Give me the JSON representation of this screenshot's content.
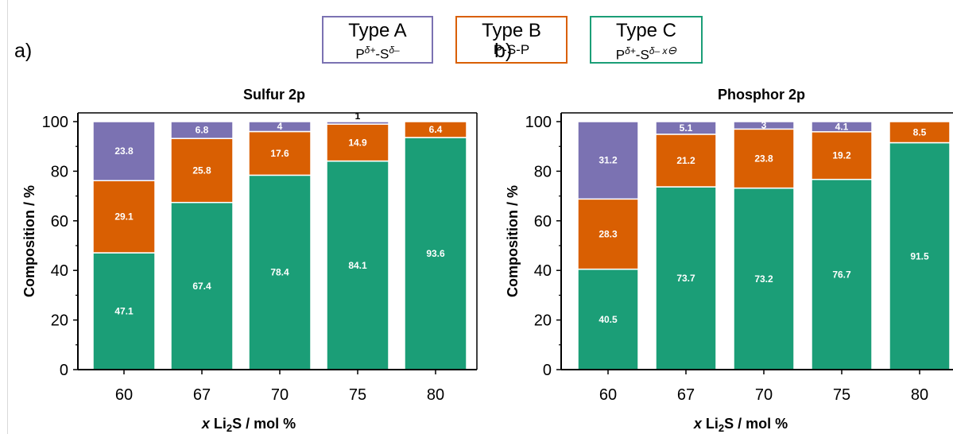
{
  "legend": [
    {
      "title": "Type A",
      "formula_parts": [
        "P",
        "δ+",
        "-S",
        "δ–"
      ],
      "color": "#7b72b2"
    },
    {
      "title": "Type B",
      "formula_text": "P-S-P",
      "color": "#d95f02"
    },
    {
      "title": "Type C",
      "formula_parts": [
        "P",
        "δ+",
        "-S",
        "δ– x",
        "⊖"
      ],
      "color": "#1b9e77"
    }
  ],
  "colors": {
    "type_c": "#1b9e77",
    "type_b": "#d95f02",
    "type_a": "#7b72b2"
  },
  "chart_data": [
    {
      "type": "bar",
      "stacked": true,
      "panel": "a)",
      "title": "Sulfur 2p",
      "xlabel_italic": "x",
      "xlabel_rest": " Li",
      "xlabel_sub": "2",
      "xlabel_tail": "S / mol %",
      "ylabel": "Composition / %",
      "ylim": [
        0,
        100
      ],
      "yticks": [
        0,
        20,
        40,
        60,
        80,
        100
      ],
      "categories": [
        "60",
        "67",
        "70",
        "75",
        "80"
      ],
      "series": [
        {
          "name": "Type C",
          "values": [
            47.1,
            67.4,
            78.4,
            84.1,
            93.6
          ],
          "labels": [
            "47.1",
            "67.4",
            "78.4",
            "84.1",
            "93.6"
          ]
        },
        {
          "name": "Type B",
          "values": [
            29.1,
            25.8,
            17.6,
            14.9,
            6.4
          ],
          "labels": [
            "29.1",
            "25.8",
            "17.6",
            "14.9",
            "6.4"
          ]
        },
        {
          "name": "Type A",
          "values": [
            23.8,
            6.8,
            4,
            1,
            0
          ],
          "labels": [
            "23.8",
            "6.8",
            "4",
            "1",
            ""
          ]
        }
      ]
    },
    {
      "type": "bar",
      "stacked": true,
      "panel": "b)",
      "title": "Phosphor 2p",
      "xlabel_italic": "x",
      "xlabel_rest": " Li",
      "xlabel_sub": "2",
      "xlabel_tail": "S / mol %",
      "ylabel": "Composition / %",
      "ylim": [
        0,
        100
      ],
      "yticks": [
        0,
        20,
        40,
        60,
        80,
        100
      ],
      "categories": [
        "60",
        "67",
        "70",
        "75",
        "80"
      ],
      "series": [
        {
          "name": "Type C",
          "values": [
            40.5,
            73.7,
            73.2,
            76.7,
            91.5
          ],
          "labels": [
            "40.5",
            "73.7",
            "73.2",
            "76.7",
            "91.5"
          ]
        },
        {
          "name": "Type B",
          "values": [
            28.3,
            21.2,
            23.8,
            19.2,
            8.5
          ],
          "labels": [
            "28.3",
            "21.2",
            "23.8",
            "19.2",
            "8.5"
          ]
        },
        {
          "name": "Type A",
          "values": [
            31.2,
            5.1,
            3,
            4.1,
            0
          ],
          "labels": [
            "31.2",
            "5.1",
            "3",
            "4.1",
            ""
          ]
        }
      ]
    }
  ]
}
